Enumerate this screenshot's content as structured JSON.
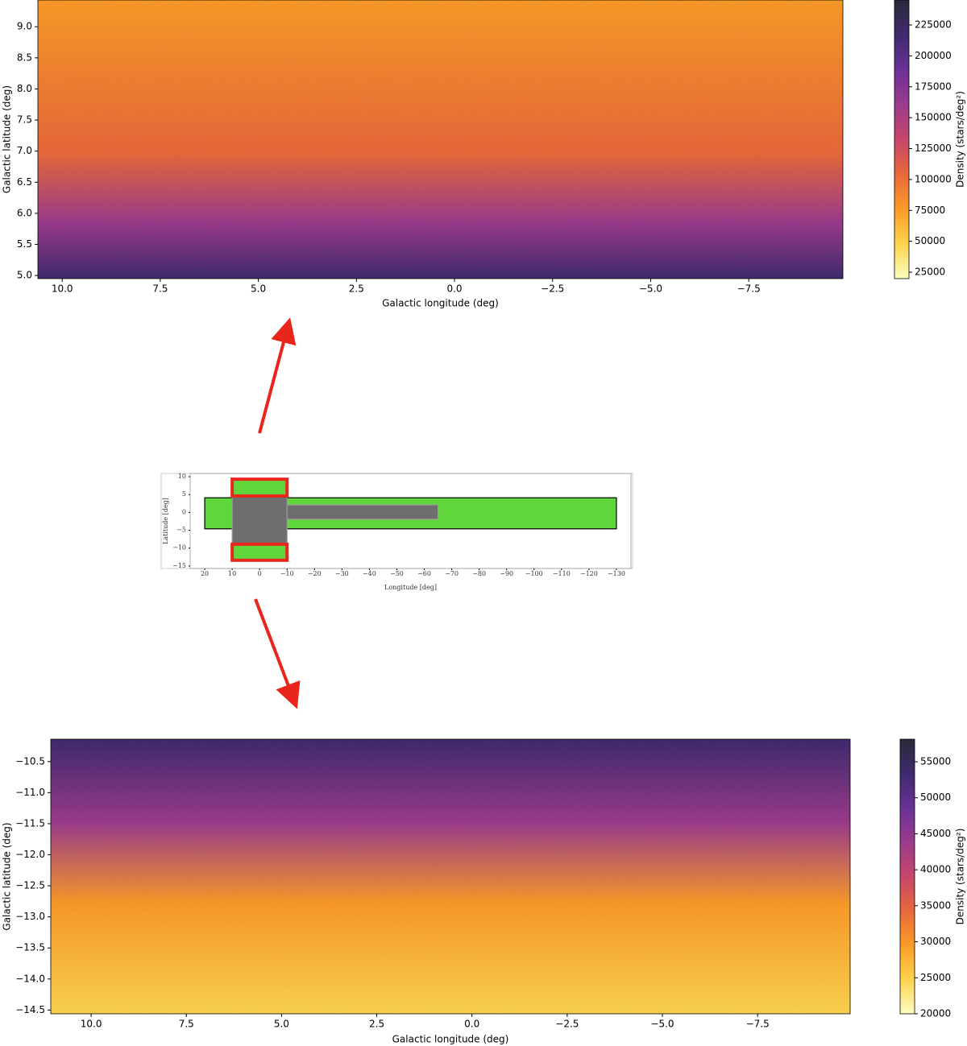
{
  "chart_data": [
    {
      "type": "heatmap",
      "xlabel": "Galactic longitude (deg)",
      "ylabel": "Galactic latitude (deg)",
      "xlim": [
        10.62,
        -9.9
      ],
      "ylim": [
        4.95,
        9.43
      ],
      "xticks": [
        {
          "value": 10,
          "label": "10.0"
        },
        {
          "value": 7.5,
          "label": "7.5"
        },
        {
          "value": 5,
          "label": "5.0"
        },
        {
          "value": 2.5,
          "label": "2.5"
        },
        {
          "value": 0,
          "label": "0.0"
        },
        {
          "value": -2.5,
          "label": "−2.5"
        },
        {
          "value": -5,
          "label": "−5.0"
        },
        {
          "value": -7.5,
          "label": "−7.5"
        }
      ],
      "yticks": [
        {
          "value": 5,
          "label": "5.0"
        },
        {
          "value": 5.5,
          "label": "5.5"
        },
        {
          "value": 6,
          "label": "6.0"
        },
        {
          "value": 6.5,
          "label": "6.5"
        },
        {
          "value": 7,
          "label": "7.0"
        },
        {
          "value": 7.5,
          "label": "7.5"
        },
        {
          "value": 8,
          "label": "8.0"
        },
        {
          "value": 8.5,
          "label": "8.5"
        },
        {
          "value": 9,
          "label": "9.0"
        }
      ],
      "colormap": [
        "#fcfdbf",
        "#fdd44e",
        "#fb9b28",
        "#e9683a",
        "#c7466c",
        "#9b3b8c",
        "#6a3197",
        "#3f2a6e",
        "#2b2a3a"
      ],
      "colorbar": {
        "label": "Density (stars/deg²)",
        "lim": [
          19800,
          245200
        ],
        "ticks": [
          25000,
          50000,
          75000,
          100000,
          125000,
          150000,
          175000,
          200000,
          225000
        ]
      }
    },
    {
      "type": "region-map",
      "xlabel": "Longitude [deg]",
      "ylabel": "Latitude [deg]",
      "xlim": [
        25.3,
        -135.3
      ],
      "ylim": [
        -15.7,
        10.9
      ],
      "xticks": [
        20,
        10,
        0,
        {
          "value": -10,
          "label": "−10"
        },
        {
          "value": -20,
          "label": "−20"
        },
        {
          "value": -30,
          "label": "−30"
        },
        {
          "value": -40,
          "label": "−40"
        },
        {
          "value": -50,
          "label": "−50"
        },
        {
          "value": -60,
          "label": "−60"
        },
        {
          "value": -70,
          "label": "−70"
        },
        {
          "value": -80,
          "label": "−80"
        },
        {
          "value": -90,
          "label": "−90"
        },
        {
          "value": -100,
          "label": "−100"
        },
        {
          "value": -110,
          "label": "−110"
        },
        {
          "value": -120,
          "label": "−120"
        },
        {
          "value": -130,
          "label": "−130"
        }
      ],
      "yticks": [
        10,
        5,
        0,
        {
          "value": -5,
          "label": "−5"
        },
        {
          "value": -10,
          "label": "−10"
        },
        {
          "value": -15,
          "label": "−15"
        }
      ],
      "rects": [
        {
          "x": [
            20,
            -130
          ],
          "y": [
            -4.6,
            4.1
          ],
          "fill": "#5fd63a",
          "stroke": "#000000"
        },
        {
          "x": [
            10,
            -10
          ],
          "y": [
            -8.9,
            4.6
          ],
          "fill": "#6e6e6e",
          "stroke": "#9a9a9a"
        },
        {
          "x": [
            -10,
            -65
          ],
          "y": [
            -1.9,
            2.1
          ],
          "fill": "#6e6e6e",
          "stroke": "#9a9a9a"
        },
        {
          "x": [
            10,
            -10
          ],
          "y": [
            4.6,
            9.3
          ],
          "fill": "#5fd63a",
          "stroke": "#e8261c"
        },
        {
          "x": [
            10,
            -10
          ],
          "y": [
            -13.4,
            -8.9
          ],
          "fill": "#5fd63a",
          "stroke": "#e8261c"
        }
      ]
    },
    {
      "type": "heatmap",
      "xlabel": "Galactic longitude (deg)",
      "ylabel": "Galactic latitude (deg)",
      "xlim": [
        11.06,
        -9.93
      ],
      "ylim": [
        -14.56,
        -10.14
      ],
      "xticks": [
        {
          "value": 10,
          "label": "10.0"
        },
        {
          "value": 7.5,
          "label": "7.5"
        },
        {
          "value": 5,
          "label": "5.0"
        },
        {
          "value": 2.5,
          "label": "2.5"
        },
        {
          "value": 0,
          "label": "0.0"
        },
        {
          "value": -2.5,
          "label": "−2.5"
        },
        {
          "value": -5,
          "label": "−5.0"
        },
        {
          "value": -7.5,
          "label": "−7.5"
        }
      ],
      "yticks": [
        {
          "value": -10.5,
          "label": "−10.5"
        },
        {
          "value": -11,
          "label": "−11.0"
        },
        {
          "value": -11.5,
          "label": "−11.5"
        },
        {
          "value": -12,
          "label": "−12.0"
        },
        {
          "value": -12.5,
          "label": "−12.5"
        },
        {
          "value": -13,
          "label": "−13.0"
        },
        {
          "value": -13.5,
          "label": "−13.5"
        },
        {
          "value": -14,
          "label": "−14.0"
        },
        {
          "value": -14.5,
          "label": "−14.5"
        }
      ],
      "colormap": [
        "#fcfdbf",
        "#fdd44e",
        "#fb9b28",
        "#e9683a",
        "#c7466c",
        "#9b3b8c",
        "#6a3197",
        "#3f2a6e",
        "#2b2a3a"
      ],
      "colorbar": {
        "label": "Density (stars/deg²)",
        "lim": [
          20000,
          58130
        ],
        "ticks": [
          20000,
          25000,
          30000,
          35000,
          40000,
          45000,
          50000,
          55000
        ]
      }
    }
  ]
}
